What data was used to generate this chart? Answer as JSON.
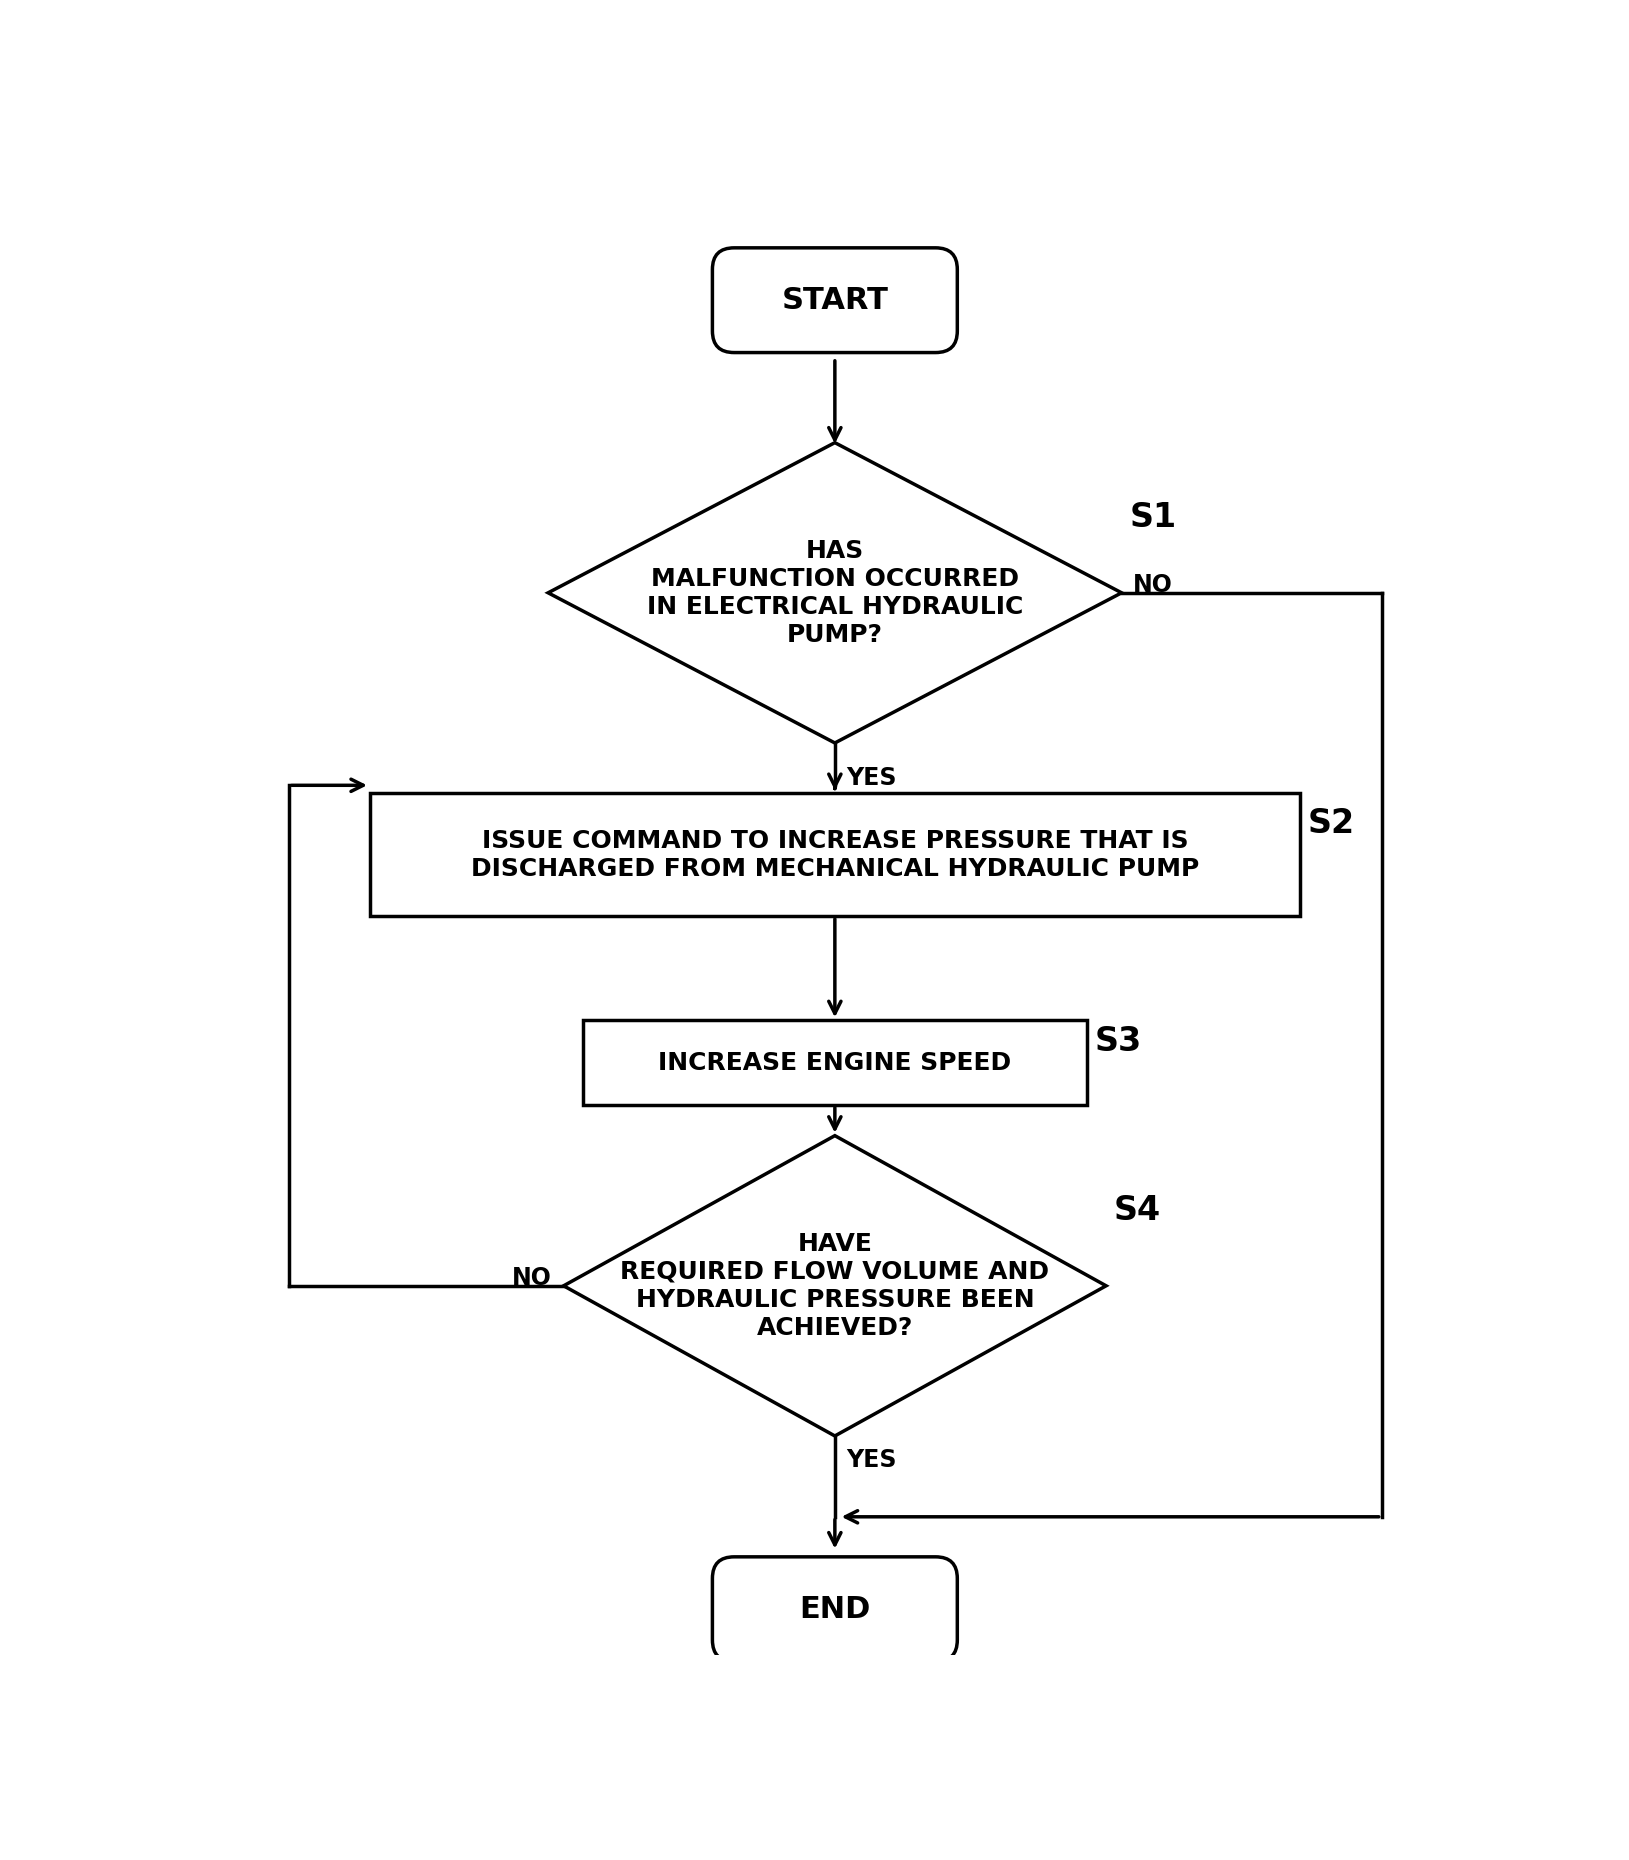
{
  "bg_color": "#ffffff",
  "line_color": "#000000",
  "text_color": "#000000",
  "fig_width": 16.29,
  "fig_height": 18.6,
  "start_label": "START",
  "end_label": "END",
  "diamond1_label": "HAS\nMALFUNCTION OCCURRED\nIN ELECTRICAL HYDRAULIC\nPUMP?",
  "diamond1_step": "S1",
  "rect1_label": "ISSUE COMMAND TO INCREASE PRESSURE THAT IS\nDISCHARGED FROM MECHANICAL HYDRAULIC PUMP",
  "rect1_step": "S2",
  "rect2_label": "INCREASE ENGINE SPEED",
  "rect2_step": "S3",
  "diamond2_label": "HAVE\nREQUIRED FLOW VOLUME AND\nHYDRAULIC PRESSURE BEEN\nACHIEVED?",
  "diamond2_step": "S4",
  "yes_label": "YES",
  "no_label": "NO",
  "font_size_body": 18,
  "font_size_step": 24,
  "font_size_terminal": 22,
  "font_size_yn": 17,
  "lw": 2.5
}
